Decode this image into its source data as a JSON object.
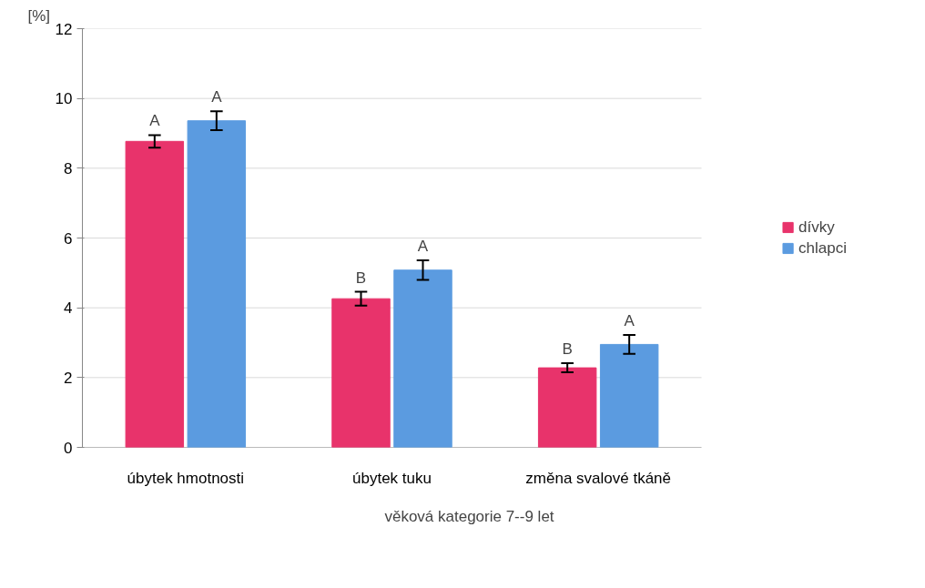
{
  "chart_data": {
    "type": "bar",
    "xlabel": "věková kategorie 7--9 let",
    "ylabel": "[%]",
    "categories": [
      "úbytek hmotnosti",
      "úbytek tuku",
      "změna svalové tkáně"
    ],
    "series": [
      {
        "name": "dívky",
        "color": "#e8336b",
        "values": [
          8.77,
          4.26,
          2.28
        ],
        "errors": [
          0.18,
          0.2,
          0.13
        ]
      },
      {
        "name": "chlapci",
        "color": "#5b9be0",
        "values": [
          9.36,
          5.08,
          2.95
        ],
        "errors": [
          0.27,
          0.28,
          0.27
        ]
      }
    ],
    "ylim": [
      0,
      12
    ],
    "yticks": [
      0,
      2,
      4,
      6,
      8,
      10,
      12
    ],
    "grid": "y",
    "legend": "right",
    "annotations": [
      "A",
      "A",
      "B",
      "A",
      "B",
      "A"
    ]
  }
}
